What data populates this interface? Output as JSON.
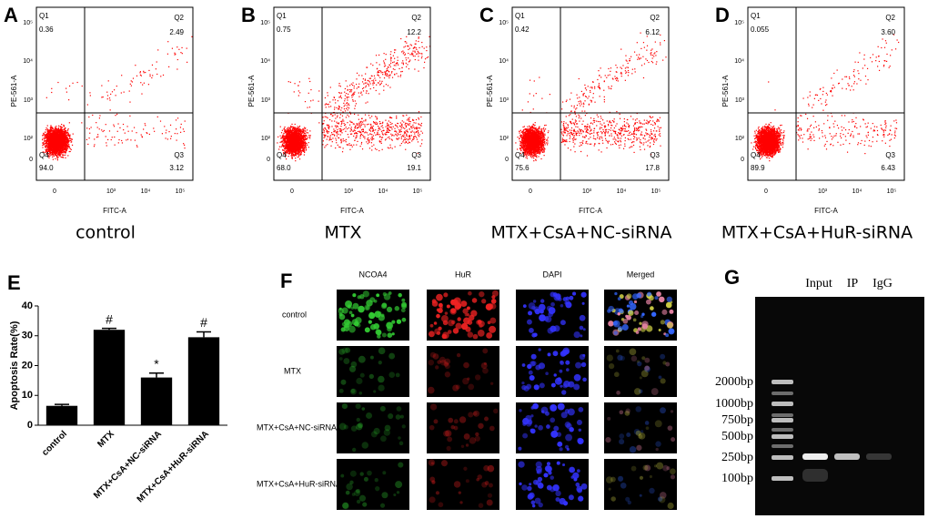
{
  "flow_axes": {
    "y_axis_label": "PE-561-A",
    "x_axis_label": "FITC-A",
    "yticks": [
      "10⁵",
      "10⁴",
      "10³",
      "10²",
      "0"
    ],
    "xticks": [
      "0",
      "10³",
      "10⁴",
      "10⁵"
    ],
    "quadrants": [
      "Q1",
      "Q2",
      "Q3",
      "Q4"
    ]
  },
  "flow_panels": [
    {
      "letter": "A",
      "caption": "control",
      "q1": "0.36",
      "q2": "2.49",
      "q3": "3.12",
      "q4": "94.0"
    },
    {
      "letter": "B",
      "caption": "MTX",
      "q1": "0.75",
      "q2": "12.2",
      "q3": "19.1",
      "q4": "68.0"
    },
    {
      "letter": "C",
      "caption": "MTX+CsA+NC-siRNA",
      "q1": "0.42",
      "q2": "6.12",
      "q3": "17.8",
      "q4": "75.6"
    },
    {
      "letter": "D",
      "caption": "MTX+CsA+HuR-siRNA",
      "q1": "0.055",
      "q2": "3.60",
      "q3": "6.43",
      "q4": "89.9"
    }
  ],
  "chart_data": {
    "type": "bar",
    "letter": "E",
    "y_label": "Apoptosis Rate(%)",
    "categories": [
      "control",
      "MTX",
      "MTX+CsA+NC-siRNA",
      "MTX+CsA+HuR-siRNA"
    ],
    "values": [
      6.5,
      32,
      16,
      29.5
    ],
    "errors": [
      0.5,
      0.5,
      1.5,
      1.8
    ],
    "annotations": [
      null,
      "#",
      "*",
      "#"
    ],
    "color": "#000000",
    "ylim": [
      0,
      40
    ],
    "yticks": [
      0,
      10,
      20,
      30,
      40
    ]
  },
  "fluorescence": {
    "letter": "F",
    "columns": [
      "NCOA4",
      "HuR",
      "DAPI",
      "Merged"
    ],
    "rows": [
      "control",
      "MTX",
      "MTX+CsA+NC-siRNA",
      "MTX+CsA+HuR-siRNA"
    ]
  },
  "gel": {
    "letter": "G",
    "lanes": [
      "Input",
      "IP",
      "IgG"
    ],
    "ladder": [
      "2000bp",
      "1000bp",
      "750bp",
      "500bp",
      "250bp",
      "100bp"
    ]
  }
}
